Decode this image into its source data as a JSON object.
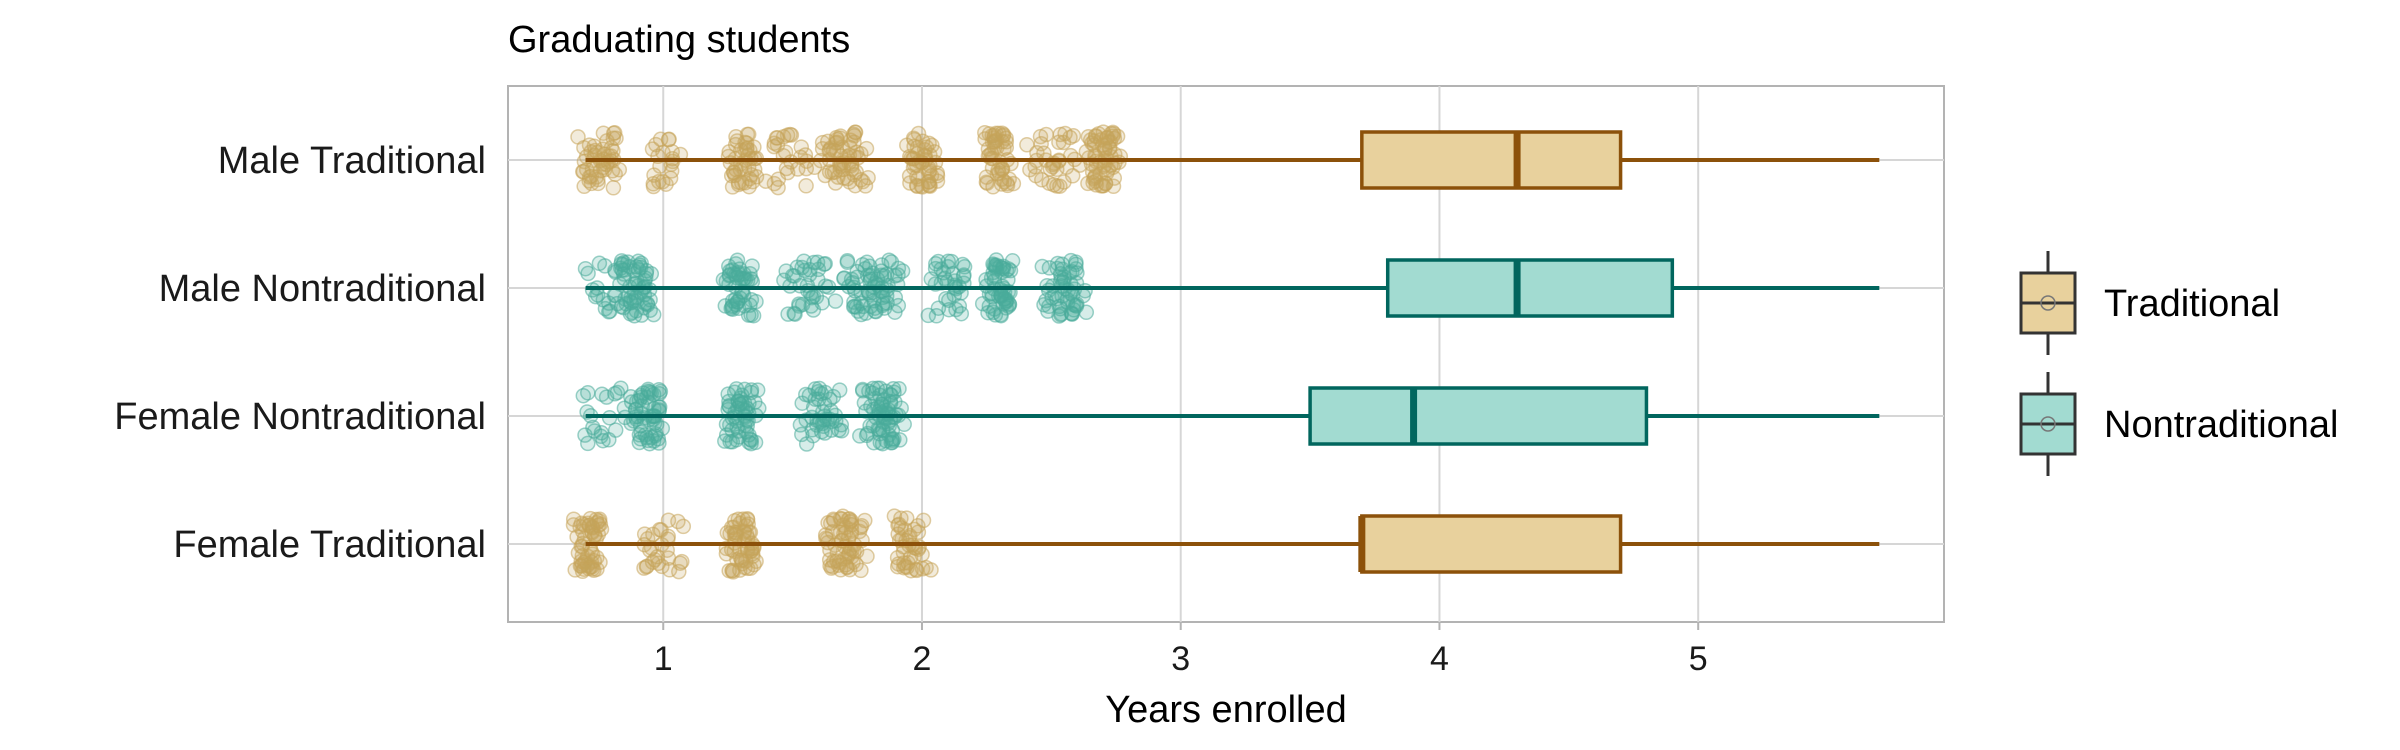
{
  "chart_data": {
    "type": "boxplot",
    "title": "Graduating students",
    "xlabel": "Years enrolled",
    "ylabel": "",
    "xlim": [
      0.4,
      5.95
    ],
    "xticks": [
      1,
      2,
      3,
      4,
      5
    ],
    "grid": true,
    "legend_position": "right",
    "legend": [
      {
        "label": "Traditional",
        "color": "#e8d19d"
      },
      {
        "label": "Nontraditional",
        "color": "#a2dbd1"
      }
    ],
    "colors": {
      "Traditional": {
        "fill": "#e8d19d",
        "line": "#8c510a",
        "point": "#c6a45a"
      },
      "Nontraditional": {
        "fill": "#a2dbd1",
        "line": "#01665e",
        "point": "#4aab9b"
      }
    },
    "categories": [
      "Male Traditional",
      "Male Nontraditional",
      "Female Nontraditional",
      "Female Traditional"
    ],
    "groups": [
      {
        "category": "Male Traditional",
        "type": "Traditional",
        "box": {
          "min": 0.7,
          "q1": 3.7,
          "median": 4.3,
          "q3": 4.7,
          "max": 5.7
        },
        "clusters": [
          [
            0.75,
            0.7,
            0.1
          ],
          [
            1.0,
            0.3,
            0.1
          ],
          [
            1.3,
            0.6,
            0.07
          ],
          [
            1.5,
            0.4,
            0.15
          ],
          [
            1.7,
            0.8,
            0.1
          ],
          [
            2.0,
            0.7,
            0.08
          ],
          [
            2.3,
            0.7,
            0.07
          ],
          [
            2.5,
            0.5,
            0.12
          ],
          [
            2.7,
            0.9,
            0.08
          ]
        ]
      },
      {
        "category": "Male Nontraditional",
        "type": "Nontraditional",
        "box": {
          "min": 0.7,
          "q1": 3.8,
          "median": 4.3,
          "q3": 4.9,
          "max": 5.7
        },
        "clusters": [
          [
            0.78,
            0.3,
            0.1
          ],
          [
            0.9,
            0.8,
            0.08
          ],
          [
            1.3,
            0.7,
            0.08
          ],
          [
            1.55,
            0.5,
            0.1
          ],
          [
            1.8,
            1.0,
            0.15
          ],
          [
            2.1,
            0.5,
            0.1
          ],
          [
            2.3,
            0.8,
            0.07
          ],
          [
            2.55,
            0.8,
            0.1
          ]
        ]
      },
      {
        "category": "Female Nontraditional",
        "type": "Nontraditional",
        "box": {
          "min": 0.7,
          "q1": 3.5,
          "median": 3.9,
          "q3": 4.8,
          "max": 5.7
        },
        "clusters": [
          [
            0.78,
            0.3,
            0.1
          ],
          [
            0.93,
            0.8,
            0.08
          ],
          [
            1.3,
            0.8,
            0.08
          ],
          [
            1.6,
            0.6,
            0.1
          ],
          [
            1.85,
            1.0,
            0.1
          ]
        ]
      },
      {
        "category": "Female Traditional",
        "type": "Traditional",
        "box": {
          "min": 0.7,
          "q1": 3.7,
          "median": 3.7,
          "q3": 4.7,
          "max": 5.7
        },
        "clusters": [
          [
            0.72,
            0.8,
            0.08
          ],
          [
            1.0,
            0.4,
            0.1
          ],
          [
            1.3,
            0.8,
            0.07
          ],
          [
            1.7,
            0.9,
            0.1
          ],
          [
            1.95,
            0.6,
            0.1
          ]
        ]
      }
    ]
  }
}
